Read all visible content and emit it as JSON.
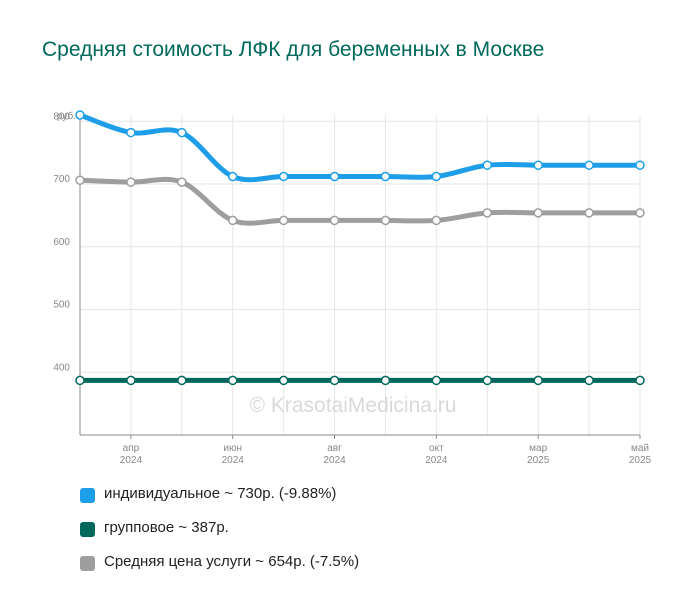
{
  "title": "Средняя стоимость ЛФК для беременных в Москве",
  "watermark": "© KrasotaiMedicina.ru",
  "chart_data": {
    "type": "line",
    "title": "Средняя стоимость ЛФК для беременных в Москве",
    "ylabel": "руб.",
    "xlabel": "",
    "ylim": [
      300,
      810
    ],
    "y_ticks": [
      400,
      500,
      600,
      700,
      800
    ],
    "x_tick_labels": [
      {
        "month": "апр",
        "year": "2024"
      },
      {
        "month": "июн",
        "year": "2024"
      },
      {
        "month": "авг",
        "year": "2024"
      },
      {
        "month": "окт",
        "year": "2024"
      },
      {
        "month": "мар",
        "year": "2025"
      },
      {
        "month": "май",
        "year": "2025"
      }
    ],
    "grid": true,
    "legend_position": "bottom",
    "series": [
      {
        "name": "индивидуальное",
        "color": "#1e9ee8",
        "values": [
          810,
          782,
          782,
          712,
          712,
          712,
          712,
          712,
          730,
          730,
          730,
          730
        ],
        "legend": "индивидуальное ~ 730р. (-9.88%)"
      },
      {
        "name": "групповое",
        "color": "#00695c",
        "values": [
          387,
          387,
          387,
          387,
          387,
          387,
          387,
          387,
          387,
          387,
          387,
          387
        ],
        "legend": "групповое ~ 387р."
      },
      {
        "name": "Средняя цена услуги",
        "color": "#9e9e9e",
        "values": [
          706,
          703,
          703,
          642,
          642,
          642,
          642,
          642,
          654,
          654,
          654,
          654
        ],
        "legend": "Средняя цена услуги ~ 654р. (-7.5%)"
      }
    ]
  }
}
